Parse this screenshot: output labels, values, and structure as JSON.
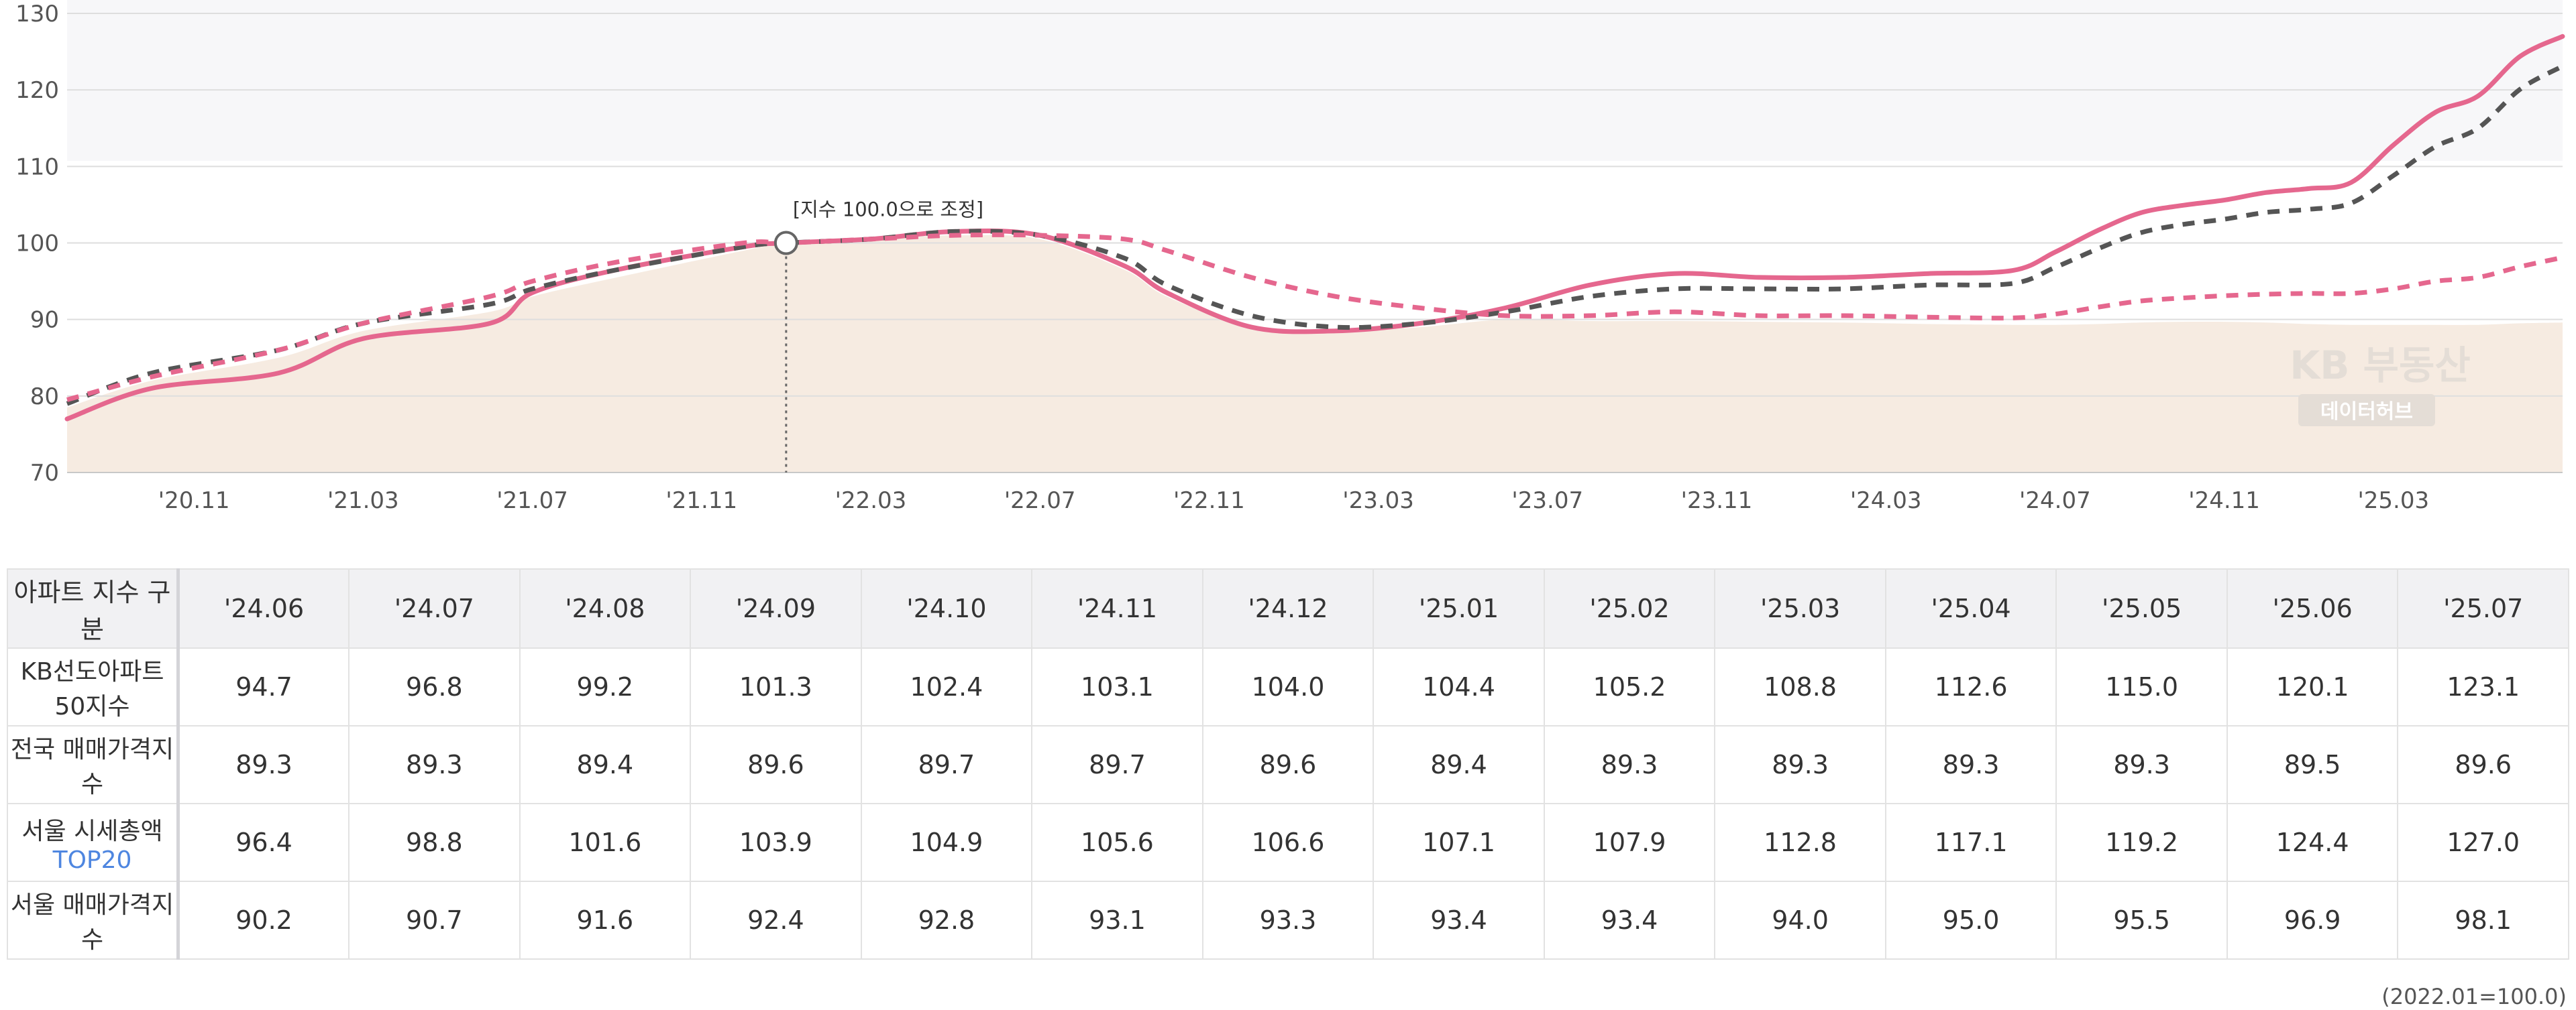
{
  "chart_data": {
    "type": "line",
    "ylim": [
      70,
      130
    ],
    "yticks": [
      70,
      80,
      90,
      100,
      110,
      120,
      130
    ],
    "x_range": [
      "2020.08",
      "2025.07"
    ],
    "xticks": [
      "'20.11",
      "'21.03",
      "'21.07",
      "'21.11",
      "'22.03",
      "'22.07",
      "'22.11",
      "'23.03",
      "'23.07",
      "'23.11",
      "'24.03",
      "'24.07",
      "'24.11",
      "'25.03"
    ],
    "grid": true,
    "legend": "none",
    "annotation": {
      "x": "2022.01",
      "y": 100.0,
      "text": "[지수 100.0으로 조정]"
    },
    "series": [
      {
        "color": "#e5678e",
        "style": "solid",
        "x": [
          "2020.08",
          "2020.10",
          "2021.01",
          "2021.03",
          "2021.06",
          "2021.07",
          "2021.09",
          "2021.12",
          "2022.01",
          "2022.03",
          "2022.05",
          "2022.07",
          "2022.09",
          "2022.10",
          "2022.12",
          "2023.02",
          "2023.04",
          "2023.06",
          "2023.08",
          "2023.10",
          "2023.12",
          "2024.02",
          "2024.04",
          "2024.06",
          "2024.07",
          "2024.08",
          "2024.09",
          "2024.10",
          "2024.11",
          "2024.12",
          "2025.01",
          "2025.02",
          "2025.03",
          "2025.04",
          "2025.05",
          "2025.06",
          "2025.07"
        ],
        "y": [
          77.0,
          81.0,
          83.0,
          87.5,
          89.5,
          93.5,
          96.5,
          99.5,
          100.0,
          100.5,
          101.5,
          101.0,
          97.0,
          93.5,
          89.0,
          88.5,
          89.5,
          91.5,
          94.5,
          96.0,
          95.5,
          95.5,
          96.0,
          96.4,
          98.8,
          101.6,
          103.9,
          104.9,
          105.6,
          106.6,
          107.1,
          107.9,
          112.8,
          117.1,
          119.2,
          124.4,
          127.0
        ]
      },
      {
        "color": "#555555",
        "style": "dashed",
        "x": [
          "2020.08",
          "2020.10",
          "2021.01",
          "2021.03",
          "2021.06",
          "2021.07",
          "2021.09",
          "2021.12",
          "2022.01",
          "2022.03",
          "2022.05",
          "2022.07",
          "2022.09",
          "2022.10",
          "2022.12",
          "2023.02",
          "2023.04",
          "2023.06",
          "2023.08",
          "2023.10",
          "2023.12",
          "2024.02",
          "2024.04",
          "2024.06",
          "2024.07",
          "2024.08",
          "2024.09",
          "2024.10",
          "2024.11",
          "2024.12",
          "2025.01",
          "2025.02",
          "2025.03",
          "2025.04",
          "2025.05",
          "2025.06",
          "2025.07"
        ],
        "y": [
          79.0,
          83.0,
          86.0,
          89.5,
          92.0,
          94.0,
          96.5,
          99.5,
          100.0,
          100.5,
          101.5,
          101.0,
          98.0,
          94.5,
          90.5,
          89.0,
          89.5,
          91.0,
          93.0,
          94.0,
          94.0,
          94.0,
          94.5,
          94.7,
          96.8,
          99.2,
          101.3,
          102.4,
          103.1,
          104.0,
          104.4,
          105.2,
          108.8,
          112.6,
          115.0,
          120.1,
          123.1
        ]
      },
      {
        "color": "#e5678e",
        "style": "dashed",
        "x": [
          "2020.08",
          "2020.10",
          "2021.01",
          "2021.03",
          "2021.06",
          "2021.07",
          "2021.09",
          "2021.12",
          "2022.01",
          "2022.03",
          "2022.05",
          "2022.07",
          "2022.09",
          "2022.10",
          "2022.12",
          "2023.02",
          "2023.04",
          "2023.06",
          "2023.08",
          "2023.10",
          "2023.12",
          "2024.02",
          "2024.04",
          "2024.06",
          "2024.07",
          "2024.08",
          "2024.09",
          "2024.10",
          "2024.11",
          "2024.12",
          "2025.01",
          "2025.02",
          "2025.03",
          "2025.04",
          "2025.05",
          "2025.06",
          "2025.07"
        ],
        "y": [
          79.5,
          82.5,
          86.0,
          89.5,
          93.0,
          95.0,
          97.5,
          100.0,
          100.0,
          100.5,
          101.0,
          101.0,
          100.5,
          99.0,
          95.5,
          93.0,
          91.5,
          90.5,
          90.5,
          91.0,
          90.5,
          90.5,
          90.3,
          90.2,
          90.7,
          91.6,
          92.4,
          92.8,
          93.1,
          93.3,
          93.4,
          93.4,
          94.0,
          95.0,
          95.5,
          96.9,
          98.1
        ]
      },
      {
        "style": "area",
        "fill": "#f6ebe1",
        "x": [
          "2020.08",
          "2020.10",
          "2021.01",
          "2021.03",
          "2021.06",
          "2021.07",
          "2021.09",
          "2021.12",
          "2022.01",
          "2022.03",
          "2022.05",
          "2022.07",
          "2022.09",
          "2022.10",
          "2022.12",
          "2023.02",
          "2023.04",
          "2023.06",
          "2023.08",
          "2023.10",
          "2023.12",
          "2024.02",
          "2024.04",
          "2024.06",
          "2024.07",
          "2024.08",
          "2024.09",
          "2024.10",
          "2024.11",
          "2024.12",
          "2025.01",
          "2025.02",
          "2025.03",
          "2025.04",
          "2025.05",
          "2025.06",
          "2025.07"
        ],
        "y": [
          78.5,
          82.0,
          85.0,
          88.5,
          91.0,
          93.0,
          95.5,
          99.0,
          100.0,
          100.5,
          101.0,
          100.5,
          96.5,
          93.0,
          89.0,
          88.5,
          89.0,
          90.0,
          89.8,
          89.8,
          89.7,
          89.6,
          89.4,
          89.3,
          89.3,
          89.4,
          89.6,
          89.7,
          89.7,
          89.6,
          89.4,
          89.3,
          89.3,
          89.3,
          89.3,
          89.5,
          89.6
        ]
      }
    ]
  },
  "watermark": {
    "line1": "KB 부동산",
    "line2": "데이터허브"
  },
  "table": {
    "corner": "아파트 지수 구분",
    "columns": [
      "'24.06",
      "'24.07",
      "'24.08",
      "'24.09",
      "'24.10",
      "'24.11",
      "'24.12",
      "'25.01",
      "'25.02",
      "'25.03",
      "'25.04",
      "'25.05",
      "'25.06",
      "'25.07"
    ],
    "rows": [
      {
        "label": "KB선도아파트50지수",
        "values": [
          "94.7",
          "96.8",
          "99.2",
          "101.3",
          "102.4",
          "103.1",
          "104.0",
          "104.4",
          "105.2",
          "108.8",
          "112.6",
          "115.0",
          "120.1",
          "123.1"
        ]
      },
      {
        "label": "전국 매매가격지수",
        "values": [
          "89.3",
          "89.3",
          "89.4",
          "89.6",
          "89.7",
          "89.7",
          "89.6",
          "89.4",
          "89.3",
          "89.3",
          "89.3",
          "89.3",
          "89.5",
          "89.6"
        ]
      },
      {
        "label": "서울 시세총액",
        "label_highlight": "TOP20",
        "values": [
          "96.4",
          "98.8",
          "101.6",
          "103.9",
          "104.9",
          "105.6",
          "106.6",
          "107.1",
          "107.9",
          "112.8",
          "117.1",
          "119.2",
          "124.4",
          "127.0"
        ]
      },
      {
        "label": "서울 매매가격지수",
        "values": [
          "90.2",
          "90.7",
          "91.6",
          "92.4",
          "92.8",
          "93.1",
          "93.3",
          "93.4",
          "93.4",
          "94.0",
          "95.0",
          "95.5",
          "96.9",
          "98.1"
        ]
      }
    ],
    "base_note": "(2022.01=100.0)"
  }
}
